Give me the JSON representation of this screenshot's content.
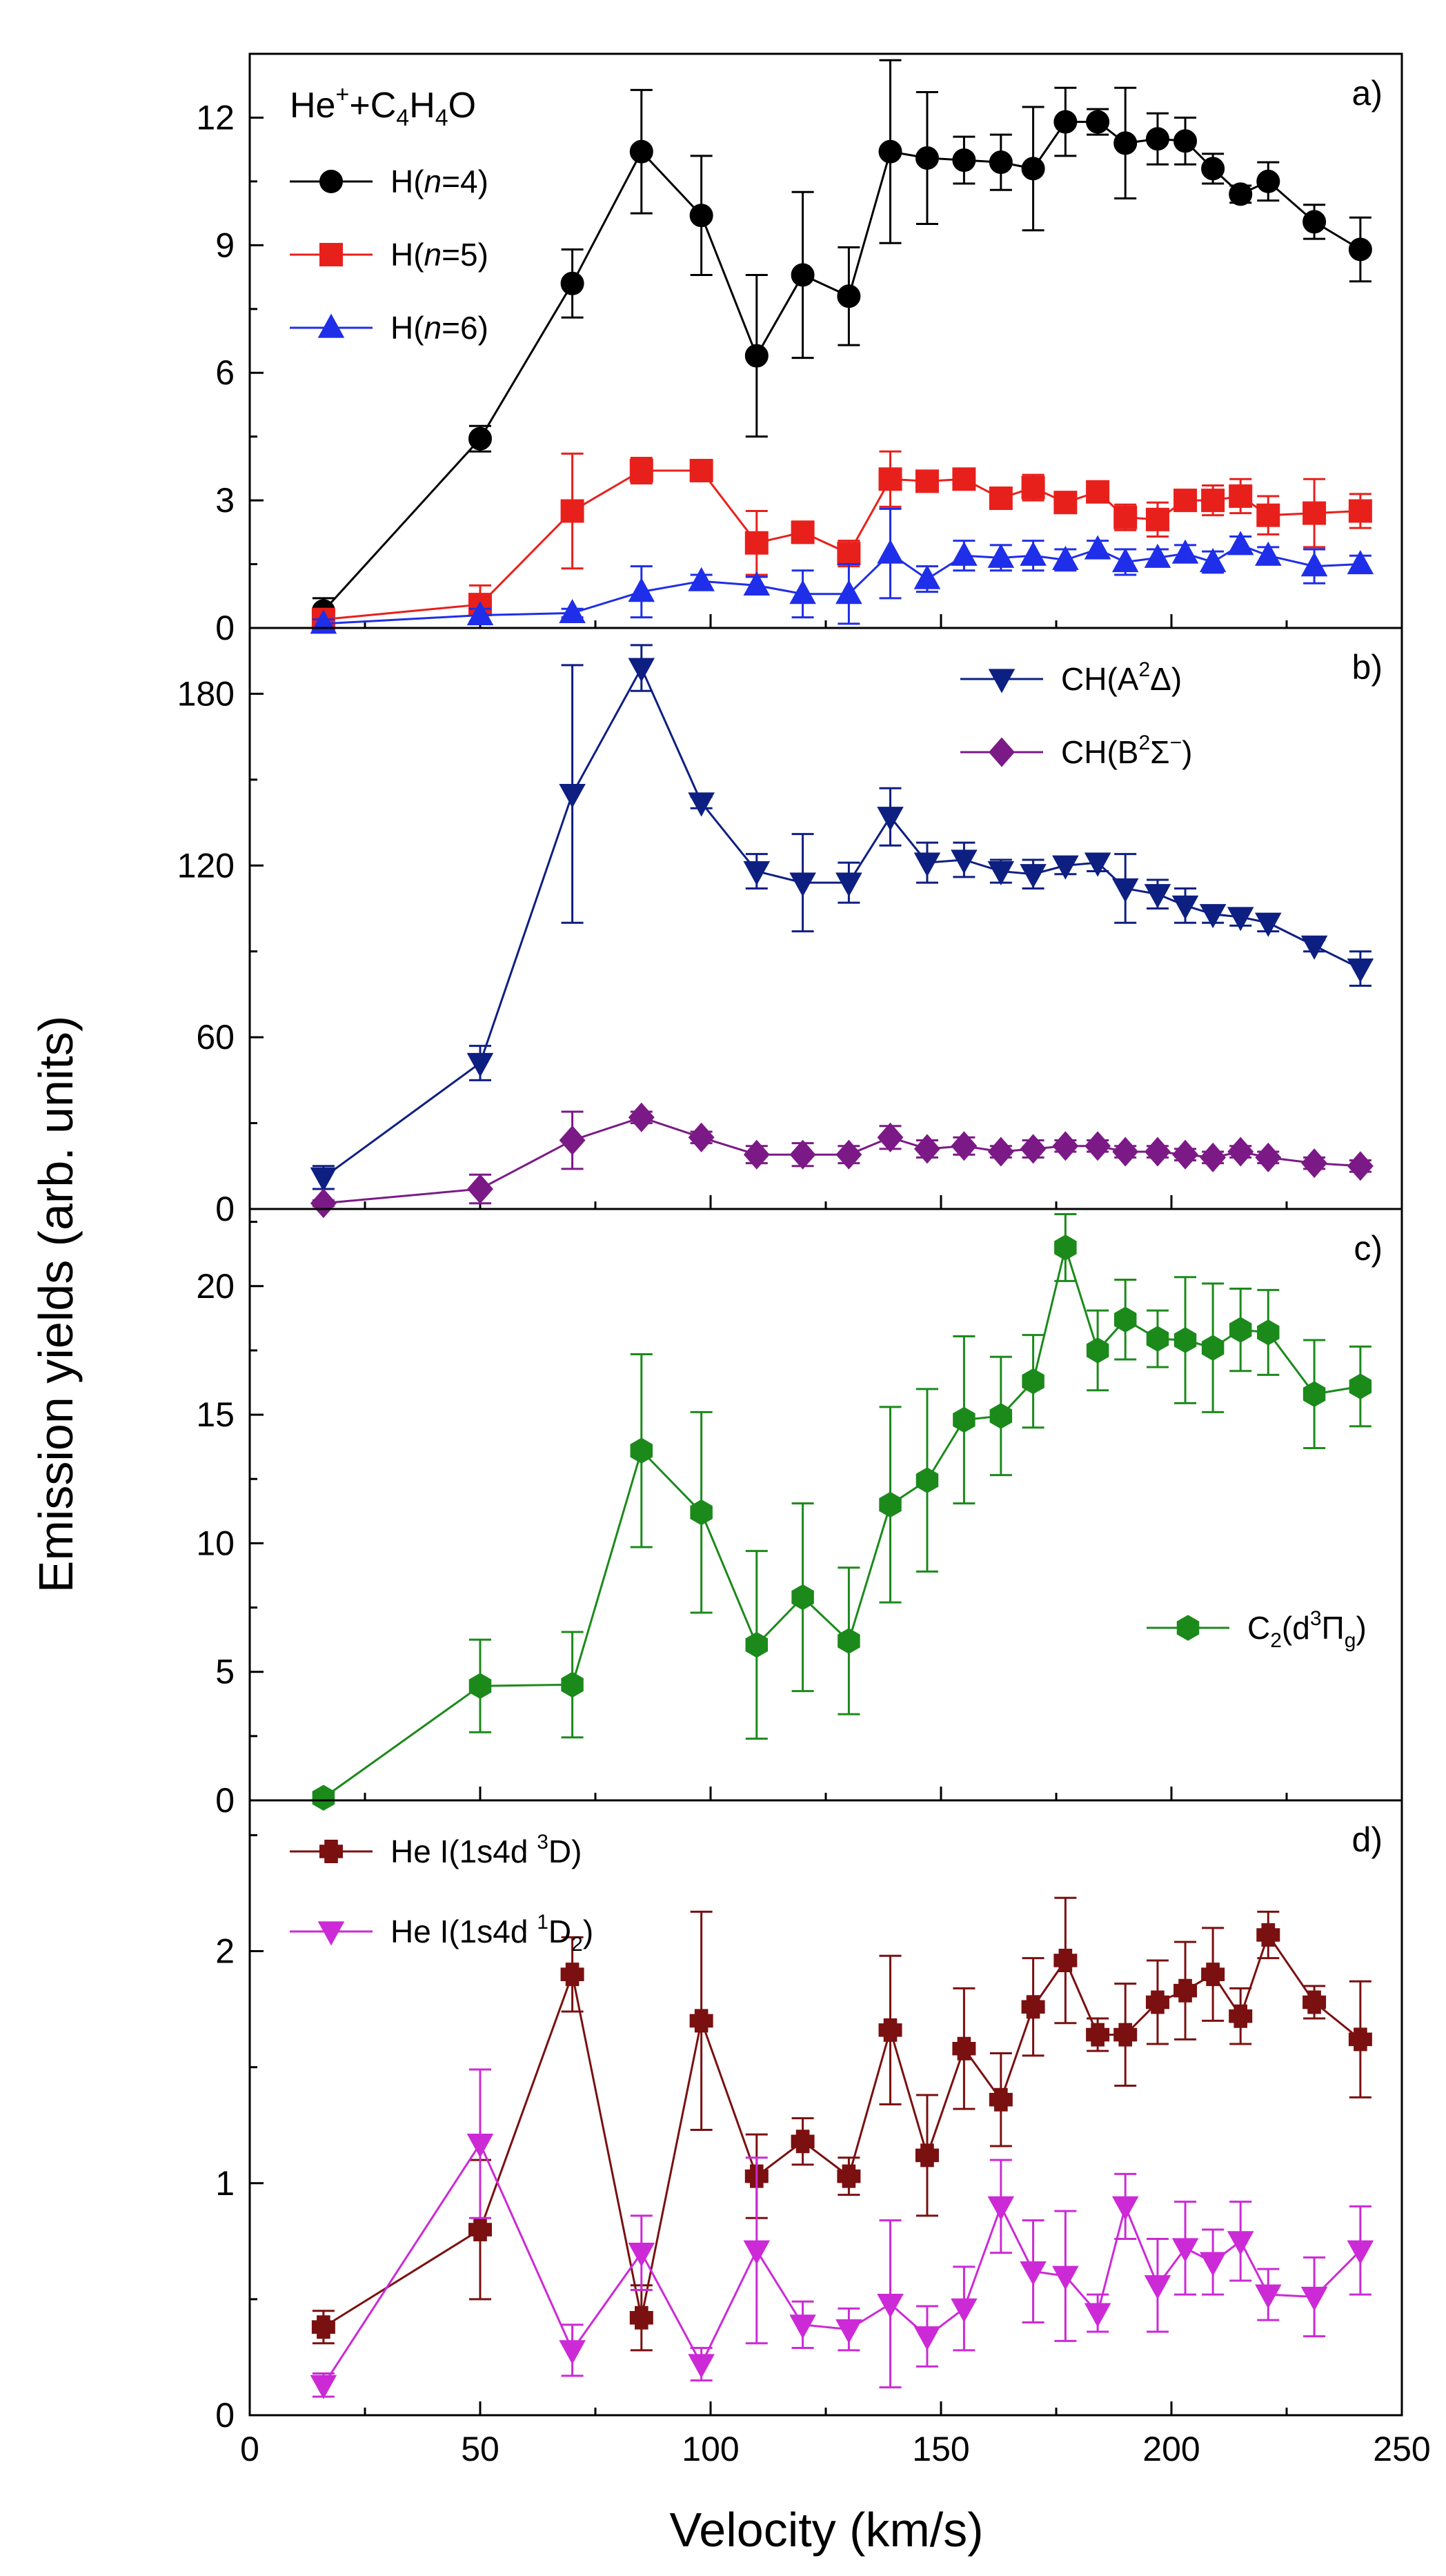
{
  "chart_data": {
    "type": "line",
    "xlabel": "Velocity (km/s)",
    "ylabel": "Emission yields (arb. units)",
    "xlim": [
      0,
      250
    ],
    "xticks": [
      0,
      50,
      100,
      150,
      200,
      250
    ],
    "panels": [
      {
        "id": "a",
        "tag": "a)",
        "annotation": {
          "base": "He",
          "sup": "+",
          "rest": "+C",
          "sub1": "4",
          "mid": "H",
          "sub2": "4",
          "end": "O"
        },
        "ylim": [
          0,
          13.5
        ],
        "yticks": [
          0,
          3,
          6,
          9,
          12
        ],
        "legend_position": "top-left",
        "series": [
          {
            "name": "H(n=4)",
            "label_pre": "H(",
            "label_it": "n",
            "label_post": "=4)",
            "color": "#000000",
            "marker": "circle",
            "x": [
              16,
              50,
              70,
              85,
              98,
              110,
              120,
              130,
              139,
              147,
              155,
              163,
              170,
              177,
              184,
              190,
              197,
              203,
              209,
              215,
              221,
              231,
              241
            ],
            "y": [
              0.4,
              4.45,
              8.1,
              11.2,
              9.7,
              6.4,
              8.3,
              7.8,
              11.2,
              11.05,
              11.0,
              10.95,
              10.8,
              11.9,
              11.9,
              11.4,
              11.5,
              11.45,
              10.8,
              10.2,
              10.5,
              9.55,
              8.9
            ],
            "err": [
              0.3,
              0.3,
              0.8,
              1.45,
              1.4,
              1.9,
              1.95,
              1.15,
              2.15,
              1.55,
              0.55,
              0.65,
              1.45,
              0.8,
              0.3,
              1.3,
              0.6,
              0.55,
              0.35,
              0.2,
              0.45,
              0.4,
              0.75
            ]
          },
          {
            "name": "H(n=5)",
            "label_pre": "H(",
            "label_it": "n",
            "label_post": "=5)",
            "color": "#e8201c",
            "marker": "square",
            "x": [
              16,
              50,
              70,
              85,
              98,
              110,
              120,
              130,
              139,
              147,
              155,
              163,
              170,
              177,
              184,
              190,
              197,
              203,
              209,
              215,
              221,
              231,
              241
            ],
            "y": [
              0.2,
              0.55,
              2.75,
              3.7,
              3.7,
              2.0,
              2.25,
              1.75,
              3.5,
              3.45,
              3.5,
              3.05,
              3.3,
              2.95,
              3.2,
              2.6,
              2.55,
              3.0,
              3.0,
              3.1,
              2.65,
              2.7,
              2.75
            ],
            "err": [
              0.1,
              0.45,
              1.35,
              0.3,
              0.15,
              0.75,
              0.25,
              0.3,
              0.65,
              0.2,
              0.2,
              0.2,
              0.3,
              0.15,
              0.2,
              0.3,
              0.4,
              0.2,
              0.35,
              0.4,
              0.45,
              0.8,
              0.4
            ]
          },
          {
            "name": "H(n=6)",
            "label_pre": "H(",
            "label_it": "n",
            "label_post": "=6)",
            "color": "#1f2ee8",
            "marker": "triangle-up",
            "x": [
              16,
              50,
              70,
              85,
              98,
              110,
              120,
              130,
              139,
              147,
              155,
              163,
              170,
              177,
              184,
              190,
              197,
              203,
              209,
              215,
              221,
              231,
              241
            ],
            "y": [
              0.1,
              0.3,
              0.35,
              0.85,
              1.1,
              1.0,
              0.8,
              0.8,
              1.75,
              1.15,
              1.7,
              1.65,
              1.7,
              1.6,
              1.85,
              1.55,
              1.65,
              1.75,
              1.55,
              1.95,
              1.7,
              1.45,
              1.5
            ],
            "err": [
              0.1,
              0.15,
              0.1,
              0.6,
              0.15,
              0.2,
              0.55,
              0.7,
              1.05,
              0.3,
              0.35,
              0.3,
              0.35,
              0.25,
              0.2,
              0.3,
              0.2,
              0.2,
              0.25,
              0.2,
              0.2,
              0.4,
              0.2
            ]
          }
        ]
      },
      {
        "id": "b",
        "tag": "b)",
        "ylim": [
          0,
          203
        ],
        "yticks": [
          0,
          60,
          120,
          180
        ],
        "legend_position": "top-right",
        "series": [
          {
            "name": "CH(A²Δ)",
            "label_pre": "CH(A",
            "label_sup": "2",
            "label_post": "Δ)",
            "color": "#0e1f82",
            "marker": "triangle-down",
            "x": [
              16,
              50,
              70,
              85,
              98,
              110,
              120,
              130,
              139,
              147,
              155,
              163,
              170,
              177,
              184,
              190,
              197,
              203,
              209,
              215,
              221,
              231,
              241
            ],
            "y": [
              11,
              51,
              145,
              189,
              142,
              118,
              114,
              114,
              137,
              121,
              122,
              118,
              117,
              120,
              121,
              112,
              110,
              106,
              103,
              102,
              100,
              92,
              84
            ],
            "err": [
              4,
              6,
              45,
              8,
              2,
              6,
              17,
              7,
              10,
              7,
              6,
              4,
              5,
              3,
              3,
              12,
              5,
              6,
              3,
              3,
              3,
              2,
              6
            ]
          },
          {
            "name": "CH(B²Σ⁻)",
            "label_pre": "CH(B",
            "label_sup": "2",
            "label_post": "Σ",
            "label_sup2": "−",
            "label_end": ")",
            "color": "#7b1a86",
            "marker": "diamond",
            "x": [
              16,
              50,
              70,
              85,
              98,
              110,
              120,
              130,
              139,
              147,
              155,
              163,
              170,
              177,
              184,
              190,
              197,
              203,
              209,
              215,
              221,
              231,
              241
            ],
            "y": [
              2,
              7,
              24,
              32,
              25,
              19,
              19,
              19,
              25,
              21,
              22,
              20,
              21,
              22,
              22,
              20,
              20,
              19,
              18,
              20,
              18,
              16,
              15
            ],
            "err": [
              1,
              5,
              10,
              2,
              2,
              3,
              4,
              3,
              4,
              3,
              3,
              2,
              3,
              2,
              2,
              2,
              2,
              2,
              2,
              2,
              2,
              2,
              2
            ]
          }
        ]
      },
      {
        "id": "c",
        "tag": "c)",
        "ylim": [
          0,
          23
        ],
        "yticks": [
          0,
          5,
          10,
          15,
          20
        ],
        "legend_position": "middle-right",
        "series": [
          {
            "name": "C₂(d³Πg)",
            "label_pre": "C",
            "label_sub": "2",
            "label_mid": "(d",
            "label_sup": "3",
            "label_mid2": "Π",
            "label_sub2": "g",
            "label_end": ")",
            "color": "#1b8a1b",
            "marker": "hexagon",
            "x": [
              16,
              50,
              70,
              85,
              98,
              110,
              120,
              130,
              139,
              147,
              155,
              163,
              170,
              177,
              184,
              190,
              197,
              203,
              209,
              215,
              221,
              231,
              241
            ],
            "y": [
              0.1,
              4.45,
              4.5,
              13.6,
              11.2,
              6.05,
              7.9,
              6.2,
              11.5,
              12.45,
              14.8,
              14.95,
              16.3,
              21.5,
              17.5,
              18.7,
              17.95,
              17.9,
              17.6,
              18.3,
              18.2,
              15.8,
              16.1
            ],
            "err": [
              0,
              1.8,
              2.05,
              3.75,
              3.9,
              3.65,
              3.65,
              2.85,
              3.8,
              3.55,
              3.25,
              2.3,
              1.8,
              1.3,
              1.55,
              1.55,
              1.1,
              2.45,
              2.5,
              1.6,
              1.65,
              2.1,
              1.55
            ]
          }
        ]
      },
      {
        "id": "d",
        "tag": "d)",
        "ylim": [
          0,
          2.65
        ],
        "yticks": [
          0,
          1,
          2
        ],
        "legend_position": "top-left",
        "series": [
          {
            "name": "He I(1s4d ³D)",
            "label_pre": "He I(1s4d ",
            "label_sup": "3",
            "label_post": "D)",
            "color": "#7a1010",
            "marker": "plus",
            "x": [
              16,
              50,
              70,
              85,
              98,
              110,
              120,
              130,
              139,
              147,
              155,
              163,
              170,
              177,
              184,
              190,
              197,
              203,
              209,
              215,
              221,
              231,
              241
            ],
            "y": [
              0.38,
              0.8,
              1.9,
              0.42,
              1.7,
              1.03,
              1.18,
              1.03,
              1.66,
              1.12,
              1.58,
              1.36,
              1.76,
              1.96,
              1.64,
              1.64,
              1.78,
              1.83,
              1.9,
              1.72,
              2.07,
              1.78,
              1.62
            ],
            "err": [
              0.07,
              0.3,
              0.16,
              0.14,
              0.47,
              0.18,
              0.1,
              0.08,
              0.32,
              0.26,
              0.26,
              0.2,
              0.21,
              0.27,
              0.07,
              0.22,
              0.18,
              0.21,
              0.2,
              0.12,
              0.1,
              0.07,
              0.25
            ]
          },
          {
            "name": "He I(1s4d ¹D₂)",
            "label_pre": "He I(1s4d ",
            "label_sup": "1",
            "label_post": "D",
            "label_sub": "2",
            "label_end": ")",
            "color": "#cc2ad6",
            "marker": "triangle-down",
            "x": [
              16,
              50,
              70,
              85,
              98,
              110,
              120,
              130,
              139,
              147,
              155,
              163,
              170,
              177,
              184,
              190,
              197,
              203,
              209,
              215,
              221,
              231,
              241
            ],
            "y": [
              0.13,
              1.17,
              0.28,
              0.7,
              0.22,
              0.71,
              0.39,
              0.37,
              0.48,
              0.34,
              0.46,
              0.9,
              0.62,
              0.6,
              0.44,
              0.9,
              0.56,
              0.72,
              0.66,
              0.75,
              0.52,
              0.51,
              0.71
            ],
            "err": [
              0.05,
              0.32,
              0.11,
              0.16,
              0.07,
              0.4,
              0.1,
              0.09,
              0.36,
              0.13,
              0.18,
              0.2,
              0.22,
              0.28,
              0.08,
              0.14,
              0.2,
              0.2,
              0.14,
              0.17,
              0.11,
              0.17,
              0.19
            ]
          }
        ]
      }
    ]
  }
}
